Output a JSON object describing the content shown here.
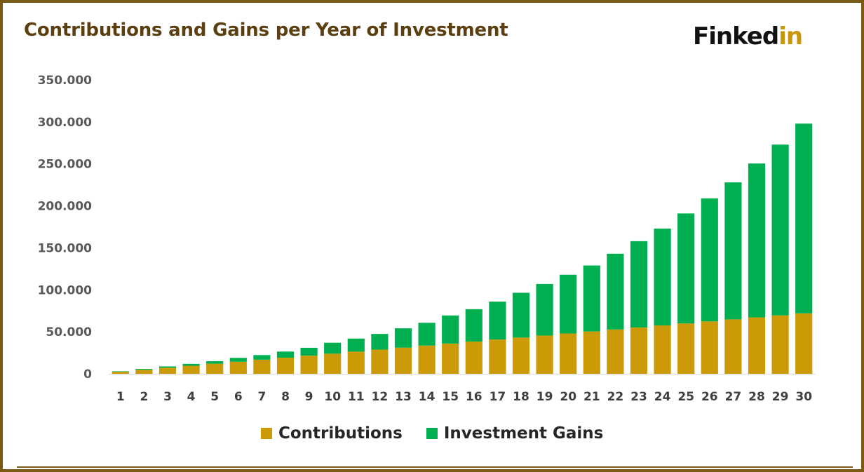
{
  "logo": {
    "main": "Finked",
    "accent": "in"
  },
  "colors": {
    "contributions": "#cc9a06",
    "gains": "#00b050",
    "frame": "#7a5a14",
    "title": "#5c3f10"
  },
  "chart_data": {
    "type": "bar",
    "stacked": true,
    "title": "Contributions and Gains per Year of Investment",
    "xlabel": "",
    "ylabel": "",
    "categories": [
      "1",
      "2",
      "3",
      "4",
      "5",
      "6",
      "7",
      "8",
      "9",
      "10",
      "11",
      "12",
      "13",
      "14",
      "15",
      "16",
      "17",
      "18",
      "19",
      "20",
      "21",
      "22",
      "23",
      "24",
      "25",
      "26",
      "27",
      "28",
      "29",
      "30"
    ],
    "series": [
      {
        "name": "Contributions",
        "values": [
          2400,
          4800,
          7200,
          9600,
          12000,
          14400,
          16800,
          19200,
          21600,
          24000,
          26400,
          28800,
          31200,
          33600,
          36000,
          38400,
          40800,
          43200,
          45600,
          48000,
          50400,
          52800,
          55200,
          57600,
          60000,
          62400,
          64800,
          67200,
          69600,
          72000
        ]
      },
      {
        "name": "Investment Gains",
        "values": [
          600,
          1000,
          1600,
          2200,
          3000,
          4600,
          5500,
          7300,
          9400,
          13000,
          15600,
          18700,
          23000,
          27200,
          33500,
          38600,
          45200,
          53300,
          61400,
          70000,
          78600,
          90200,
          102800,
          115400,
          131000,
          146600,
          163200,
          183300,
          203400,
          226000
        ]
      }
    ],
    "ylim": [
      0,
      350000
    ],
    "yticks": [
      0,
      50000,
      100000,
      150000,
      200000,
      250000,
      300000,
      350000
    ],
    "ytick_labels": [
      "0",
      "50.000",
      "100.000",
      "150.000",
      "200.000",
      "250.000",
      "300.000",
      "350.000"
    ],
    "grid": false,
    "legend_position": "bottom"
  }
}
